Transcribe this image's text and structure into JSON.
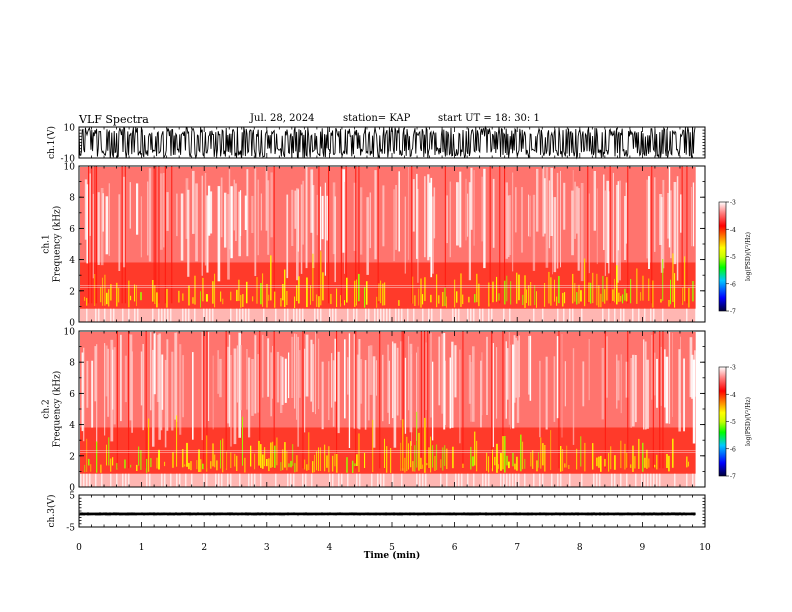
{
  "header": {
    "title": "VLF Spectra",
    "date": "Jul. 28, 2024",
    "station": "station= KAP",
    "start": "start  UT =   18: 30: 1"
  },
  "colors": {
    "frame": "#000000",
    "signal": "#000000",
    "colorbar_stops": [
      "#00003a",
      "#0000ff",
      "#00c8ff",
      "#00ff00",
      "#c8ff00",
      "#ffff00",
      "#ff8000",
      "#ff0000",
      "#ff8080",
      "#ffffff"
    ]
  },
  "chart_data": [
    {
      "type": "line",
      "name": "ch1-waveform",
      "ylabel": "ch.1(V)",
      "ylim": [
        -10,
        10
      ],
      "yticks": [
        "10",
        "-10"
      ],
      "description": "dense oscillating waveform saturating near ±10 V across the whole record",
      "xlim": [
        0,
        9.85
      ]
    },
    {
      "type": "heatmap",
      "name": "ch1-spectrogram",
      "ylabel": "ch.1\nFrequency (kHz)",
      "ylim": [
        0,
        10
      ],
      "yticks": [
        "0",
        "2",
        "4",
        "6",
        "8",
        "10"
      ],
      "xlim": [
        0,
        9.85
      ],
      "colorbar": {
        "label": "log(PSD)(V²/Hz)",
        "range": [
          -7,
          -3
        ],
        "ticks": [
          "-3",
          "-4",
          "-5",
          "-6",
          "-7"
        ]
      }
    },
    {
      "type": "heatmap",
      "name": "ch2-spectrogram",
      "ylabel": "ch.2\nFrequency (kHz)",
      "ylim": [
        0,
        10
      ],
      "yticks": [
        "0",
        "2",
        "4",
        "6",
        "8",
        "10"
      ],
      "xlim": [
        0,
        9.85
      ],
      "colorbar": {
        "label": "log(PSD)(V²/Hz)",
        "range": [
          -7,
          -3
        ],
        "ticks": [
          "-3",
          "-4",
          "-5",
          "-6",
          "-7"
        ]
      }
    },
    {
      "type": "line",
      "name": "ch3-waveform",
      "ylabel": "ch.3(V)",
      "ylim": [
        -5,
        5
      ],
      "yticks": [
        "5",
        "-5"
      ],
      "xlim": [
        0,
        9.85
      ],
      "description": "narrow constant band near -1 V"
    }
  ],
  "xaxis": {
    "label": "Time (min)",
    "range": [
      0,
      10
    ],
    "ticks": [
      "0",
      "1",
      "2",
      "3",
      "4",
      "5",
      "6",
      "7",
      "8",
      "9",
      "10"
    ]
  }
}
